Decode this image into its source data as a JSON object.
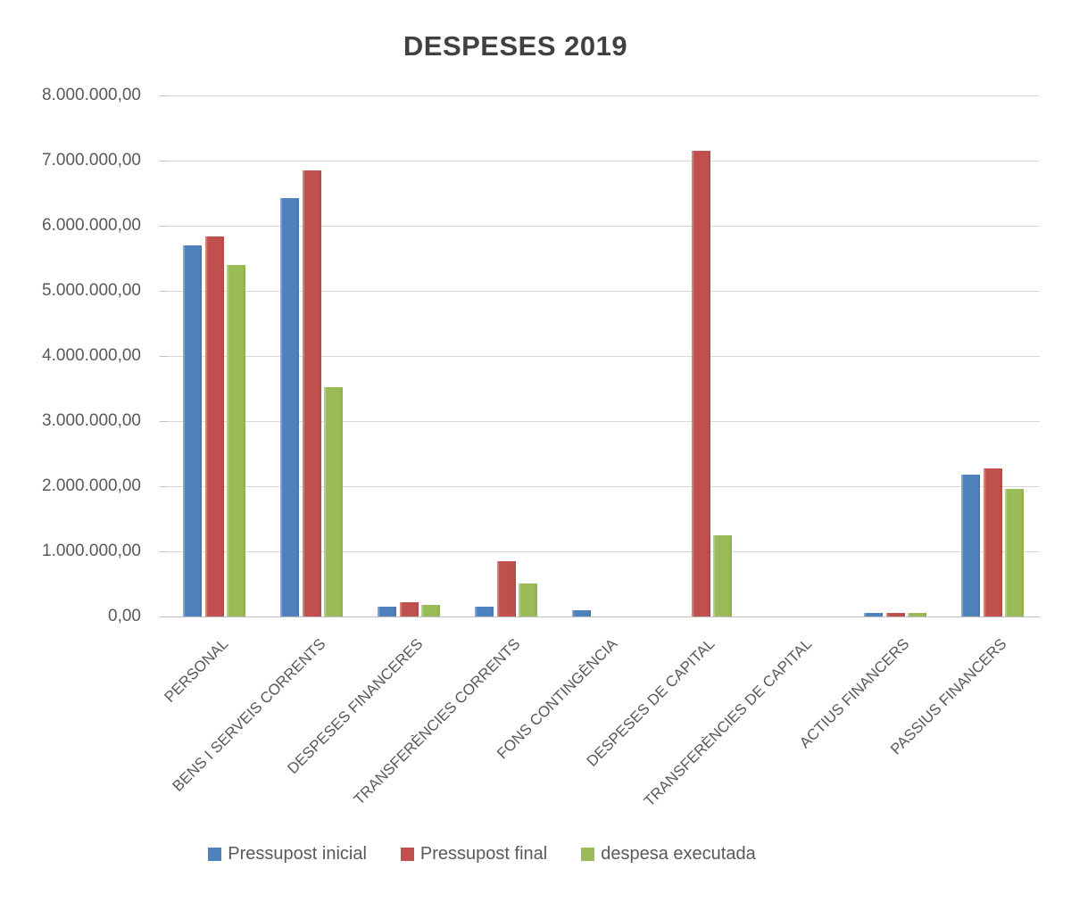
{
  "chart_data": {
    "type": "bar",
    "title": "DESPESES 2019",
    "categories": [
      "PERSONAL",
      "BENS I SERVEIS CORRENTS",
      "DESPESES FINANCERES",
      "TRANSFERÈNCIES CORRENTS",
      "FONS CONTINGÈNCIA",
      "DESPESES DE CAPITAL",
      "TRANSFERÈNCIES DE CAPITAL",
      "ACTIUS FINANCERS",
      "PASSIUS FINANCERS"
    ],
    "series": [
      {
        "name": "Pressupost inicial",
        "color": "#4F81BD",
        "values": [
          5700000,
          6430000,
          150000,
          150000,
          100000,
          0,
          0,
          50000,
          2180000
        ]
      },
      {
        "name": "Pressupost final",
        "color": "#C0504D",
        "values": [
          5830000,
          6850000,
          220000,
          850000,
          0,
          7150000,
          0,
          50000,
          2280000
        ]
      },
      {
        "name": "despesa executada",
        "color": "#9BBB59",
        "values": [
          5400000,
          3520000,
          180000,
          500000,
          0,
          1250000,
          0,
          50000,
          1960000
        ]
      }
    ],
    "ylim": [
      0,
      8000000
    ],
    "ytick_step": 1000000,
    "ytick_labels_top_to_bottom": [
      "8.000.000,00",
      "7.000.000,00",
      "6.000.000,00",
      "5.000.000,00",
      "4.000.000,00",
      "3.000.000,00",
      "2.000.000,00",
      "1.000.000,00",
      "0,00"
    ],
    "grid": true,
    "legend_position": "bottom"
  },
  "colors": {
    "title_text": "#404040",
    "axis_text": "#595959",
    "gridline": "#D9D9D9",
    "axis_line": "#BFBFBF",
    "background": "#FFFFFF"
  }
}
